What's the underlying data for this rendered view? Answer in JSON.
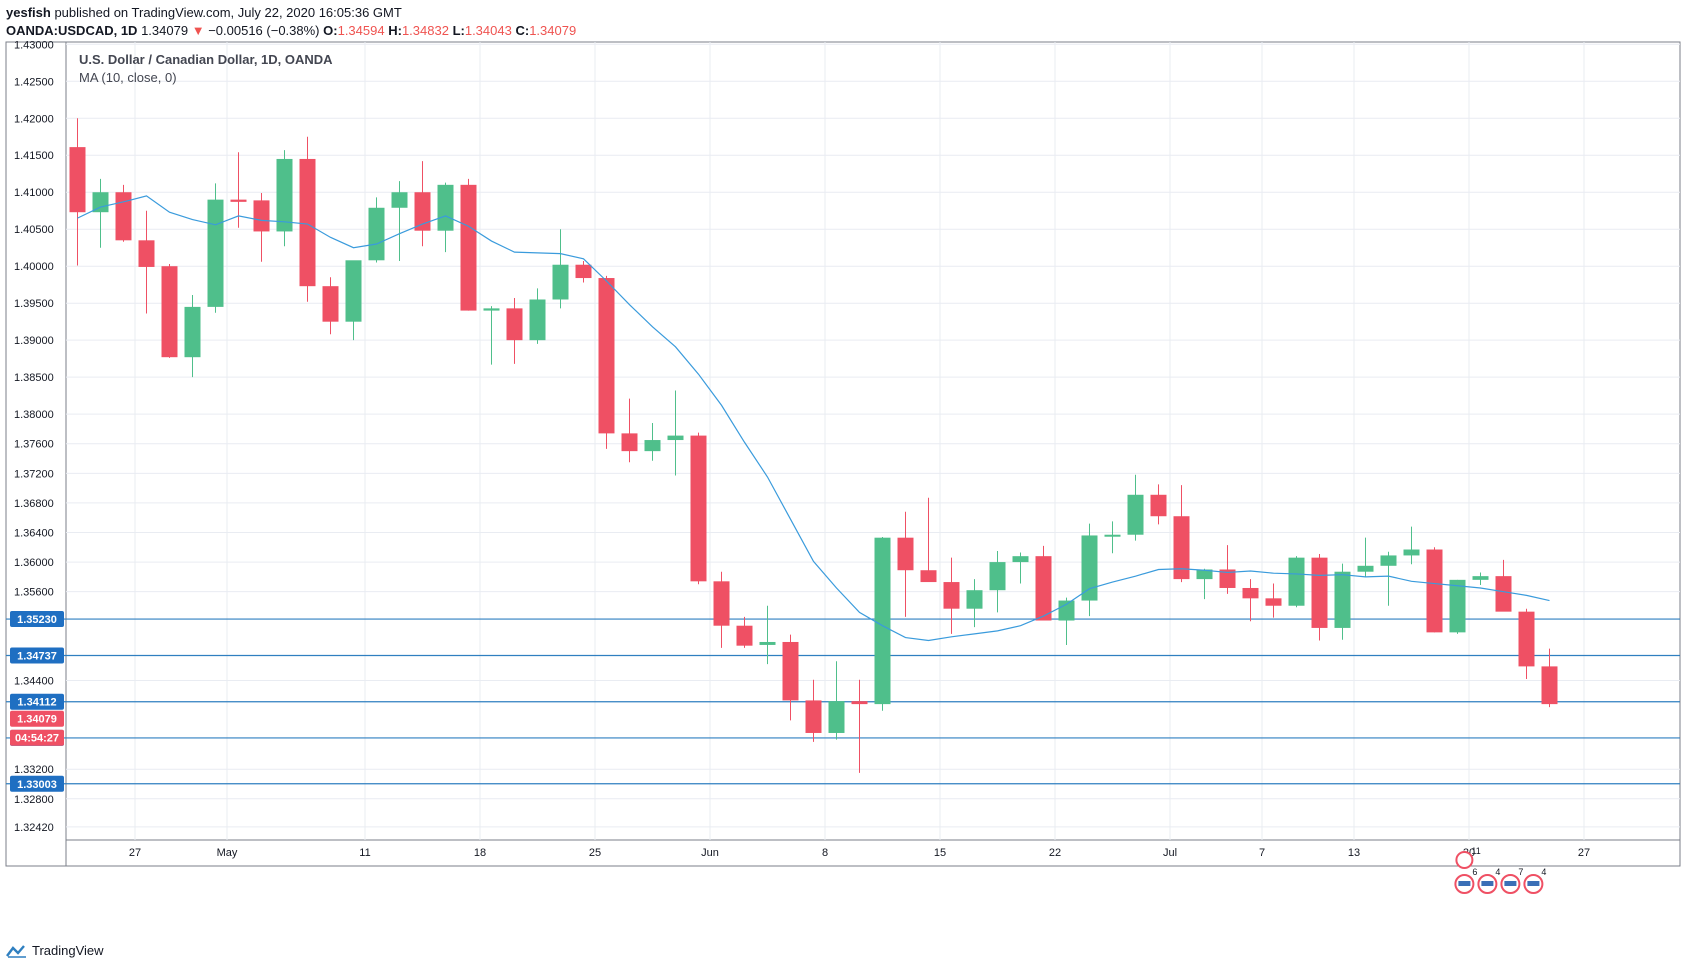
{
  "header": {
    "author": "yesfish",
    "published_text": "published on TradingView.com, July 22, 2020 16:05:36 GMT",
    "symbol": "OANDA:USDCAD, 1D",
    "last": "1.34079",
    "change_arrow": "▼",
    "change": "−0.00516 (−0.38%)",
    "o_label": "O:",
    "o_value": "1.34594",
    "h_label": "H:",
    "h_value": "1.34832",
    "l_label": "L:",
    "l_value": "1.34043",
    "c_label": "C:",
    "c_value": "1.34079"
  },
  "legend": {
    "title": "U.S. Dollar / Canadian Dollar, 1D, OANDA",
    "indicator": "MA (10, close, 0)"
  },
  "footer": {
    "brand": "TradingView"
  },
  "colors": {
    "up": "#4fbf8b",
    "down": "#ef5064",
    "ma": "#3a9bdc",
    "hline": "#2f7fc0",
    "grid": "#e9ecf2",
    "border": "#7b7f8a",
    "label_blue": "#1f6fc2",
    "label_red": "#ef5064"
  },
  "chart_data": {
    "type": "candlestick",
    "title": "U.S. Dollar / Canadian Dollar, 1D, OANDA",
    "ylim": [
      1.32243,
      1.43031
    ],
    "y_ticks": [
      {
        "v": 1.43,
        "t": "1.43000"
      },
      {
        "v": 1.425,
        "t": "1.42500"
      },
      {
        "v": 1.42,
        "t": "1.42000"
      },
      {
        "v": 1.415,
        "t": "1.41500"
      },
      {
        "v": 1.41,
        "t": "1.41000"
      },
      {
        "v": 1.405,
        "t": "1.40500"
      },
      {
        "v": 1.4,
        "t": "1.40000"
      },
      {
        "v": 1.395,
        "t": "1.39500"
      },
      {
        "v": 1.39,
        "t": "1.39000"
      },
      {
        "v": 1.385,
        "t": "1.38500"
      },
      {
        "v": 1.38,
        "t": "1.38000"
      },
      {
        "v": 1.376,
        "t": "1.37600"
      },
      {
        "v": 1.372,
        "t": "1.37200"
      },
      {
        "v": 1.368,
        "t": "1.36800"
      },
      {
        "v": 1.364,
        "t": "1.36400"
      },
      {
        "v": 1.36,
        "t": "1.36000"
      },
      {
        "v": 1.356,
        "t": "1.35600"
      },
      {
        "v": 1.344,
        "t": "1.34400"
      },
      {
        "v": 1.332,
        "t": "1.33200"
      },
      {
        "v": 1.328,
        "t": "1.32800"
      },
      {
        "v": 1.3242,
        "t": "1.32420"
      }
    ],
    "x_ticks": [
      {
        "i": 2.5,
        "t": "27"
      },
      {
        "i": 6.5,
        "t": "May"
      },
      {
        "i": 12.5,
        "t": "11"
      },
      {
        "i": 17.5,
        "t": "18"
      },
      {
        "i": 22.5,
        "t": "25"
      },
      {
        "i": 27.5,
        "t": "Jun"
      },
      {
        "i": 32.5,
        "t": "8"
      },
      {
        "i": 37.5,
        "t": "15"
      },
      {
        "i": 42.5,
        "t": "22"
      },
      {
        "i": 47.5,
        "t": "Jul"
      },
      {
        "i": 51.5,
        "t": "7"
      },
      {
        "i": 55.5,
        "t": "13"
      },
      {
        "i": 60.5,
        "t": "20"
      },
      {
        "i": 65.5,
        "t": "27"
      }
    ],
    "slots": 68,
    "candles": [
      {
        "o": 1.4161,
        "h": 1.42,
        "l": 1.4001,
        "c": 1.4073
      },
      {
        "o": 1.4073,
        "h": 1.4118,
        "l": 1.4025,
        "c": 1.41
      },
      {
        "o": 1.41,
        "h": 1.411,
        "l": 1.4033,
        "c": 1.4035
      },
      {
        "o": 1.4035,
        "h": 1.4075,
        "l": 1.3936,
        "c": 1.3999
      },
      {
        "o": 1.4,
        "h": 1.4003,
        "l": 1.3876,
        "c": 1.3877
      },
      {
        "o": 1.3877,
        "h": 1.3961,
        "l": 1.385,
        "c": 1.3945
      },
      {
        "o": 1.3945,
        "h": 1.4112,
        "l": 1.3937,
        "c": 1.409
      },
      {
        "o": 1.409,
        "h": 1.4154,
        "l": 1.4052,
        "c": 1.4087
      },
      {
        "o": 1.4089,
        "h": 1.4099,
        "l": 1.4006,
        "c": 1.4047
      },
      {
        "o": 1.4047,
        "h": 1.4157,
        "l": 1.4027,
        "c": 1.4145
      },
      {
        "o": 1.4145,
        "h": 1.4175,
        "l": 1.3952,
        "c": 1.3973
      },
      {
        "o": 1.3973,
        "h": 1.3985,
        "l": 1.3908,
        "c": 1.3925
      },
      {
        "o": 1.3925,
        "h": 1.4006,
        "l": 1.39,
        "c": 1.4008
      },
      {
        "o": 1.4008,
        "h": 1.4093,
        "l": 1.4005,
        "c": 1.4079
      },
      {
        "o": 1.4079,
        "h": 1.4115,
        "l": 1.4007,
        "c": 1.41
      },
      {
        "o": 1.41,
        "h": 1.4142,
        "l": 1.4027,
        "c": 1.4048
      },
      {
        "o": 1.4048,
        "h": 1.4113,
        "l": 1.4019,
        "c": 1.411
      },
      {
        "o": 1.411,
        "h": 1.4118,
        "l": 1.394,
        "c": 1.394
      },
      {
        "o": 1.394,
        "h": 1.3946,
        "l": 1.3867,
        "c": 1.3943
      },
      {
        "o": 1.3943,
        "h": 1.3957,
        "l": 1.3868,
        "c": 1.39
      },
      {
        "o": 1.39,
        "h": 1.397,
        "l": 1.3895,
        "c": 1.3955
      },
      {
        "o": 1.3955,
        "h": 1.405,
        "l": 1.3943,
        "c": 1.4002
      },
      {
        "o": 1.4002,
        "h": 1.4007,
        "l": 1.3978,
        "c": 1.3984
      },
      {
        "o": 1.3984,
        "h": 1.3987,
        "l": 1.3753,
        "c": 1.3774
      },
      {
        "o": 1.3774,
        "h": 1.3821,
        "l": 1.3735,
        "c": 1.375
      },
      {
        "o": 1.375,
        "h": 1.3788,
        "l": 1.3737,
        "c": 1.3765
      },
      {
        "o": 1.3765,
        "h": 1.3832,
        "l": 1.3717,
        "c": 1.3771
      },
      {
        "o": 1.3771,
        "h": 1.3775,
        "l": 1.357,
        "c": 1.3574
      },
      {
        "o": 1.3574,
        "h": 1.3587,
        "l": 1.3484,
        "c": 1.3514
      },
      {
        "o": 1.3514,
        "h": 1.3526,
        "l": 1.3484,
        "c": 1.3487
      },
      {
        "o": 1.3488,
        "h": 1.3541,
        "l": 1.3462,
        "c": 1.3492
      },
      {
        "o": 1.3492,
        "h": 1.3502,
        "l": 1.3386,
        "c": 1.3413
      },
      {
        "o": 1.3413,
        "h": 1.3441,
        "l": 1.3357,
        "c": 1.3369
      },
      {
        "o": 1.3369,
        "h": 1.3466,
        "l": 1.336,
        "c": 1.3412
      },
      {
        "o": 1.3412,
        "h": 1.3441,
        "l": 1.3315,
        "c": 1.3408
      },
      {
        "o": 1.3408,
        "h": 1.3634,
        "l": 1.3399,
        "c": 1.3633
      },
      {
        "o": 1.3633,
        "h": 1.3668,
        "l": 1.3526,
        "c": 1.3589
      },
      {
        "o": 1.3589,
        "h": 1.3687,
        "l": 1.3574,
        "c": 1.3573
      },
      {
        "o": 1.3573,
        "h": 1.3606,
        "l": 1.3503,
        "c": 1.3537
      },
      {
        "o": 1.3537,
        "h": 1.3577,
        "l": 1.3512,
        "c": 1.3562
      },
      {
        "o": 1.3562,
        "h": 1.3615,
        "l": 1.3532,
        "c": 1.36
      },
      {
        "o": 1.36,
        "h": 1.3613,
        "l": 1.3571,
        "c": 1.3608
      },
      {
        "o": 1.3608,
        "h": 1.3622,
        "l": 1.3521,
        "c": 1.3521
      },
      {
        "o": 1.3521,
        "h": 1.3552,
        "l": 1.3488,
        "c": 1.3548
      },
      {
        "o": 1.3548,
        "h": 1.3652,
        "l": 1.3527,
        "c": 1.3636
      },
      {
        "o": 1.3636,
        "h": 1.3655,
        "l": 1.3612,
        "c": 1.3637
      },
      {
        "o": 1.3637,
        "h": 1.3718,
        "l": 1.3629,
        "c": 1.3691
      },
      {
        "o": 1.3691,
        "h": 1.3705,
        "l": 1.3651,
        "c": 1.3662
      },
      {
        "o": 1.3662,
        "h": 1.3704,
        "l": 1.3573,
        "c": 1.3577
      },
      {
        "o": 1.3577,
        "h": 1.3591,
        "l": 1.355,
        "c": 1.359
      },
      {
        "o": 1.359,
        "h": 1.3623,
        "l": 1.3557,
        "c": 1.3565
      },
      {
        "o": 1.3565,
        "h": 1.3577,
        "l": 1.352,
        "c": 1.3551
      },
      {
        "o": 1.3551,
        "h": 1.3571,
        "l": 1.3525,
        "c": 1.3541
      },
      {
        "o": 1.3541,
        "h": 1.3608,
        "l": 1.3539,
        "c": 1.3606
      },
      {
        "o": 1.3606,
        "h": 1.3611,
        "l": 1.3494,
        "c": 1.3511
      },
      {
        "o": 1.3511,
        "h": 1.3598,
        "l": 1.3495,
        "c": 1.3587
      },
      {
        "o": 1.3587,
        "h": 1.3633,
        "l": 1.358,
        "c": 1.3595
      },
      {
        "o": 1.3595,
        "h": 1.3614,
        "l": 1.3541,
        "c": 1.3609
      },
      {
        "o": 1.3609,
        "h": 1.3648,
        "l": 1.3597,
        "c": 1.3617
      },
      {
        "o": 1.3617,
        "h": 1.362,
        "l": 1.3505,
        "c": 1.3505
      },
      {
        "o": 1.3505,
        "h": 1.3576,
        "l": 1.3503,
        "c": 1.3576
      },
      {
        "o": 1.3576,
        "h": 1.3586,
        "l": 1.3569,
        "c": 1.3581
      },
      {
        "o": 1.3581,
        "h": 1.3603,
        "l": 1.3534,
        "c": 1.3533
      },
      {
        "o": 1.3533,
        "h": 1.3537,
        "l": 1.3442,
        "c": 1.3459
      },
      {
        "o": 1.3459,
        "h": 1.3483,
        "l": 1.3404,
        "c": 1.3408
      }
    ],
    "ma": {
      "name": "MA (10, close, 0)",
      "start": 0,
      "values": [
        1.4065,
        1.408,
        1.4087,
        1.4095,
        1.4073,
        1.4063,
        1.4056,
        1.4068,
        1.4062,
        1.406,
        1.4057,
        1.4039,
        1.4025,
        1.403,
        1.4044,
        1.4057,
        1.4068,
        1.4054,
        1.4034,
        1.4019,
        1.4018,
        1.4017,
        1.401,
        1.398,
        1.3948,
        1.3918,
        1.3891,
        1.3854,
        1.3812,
        1.3762,
        1.3715,
        1.3658,
        1.3601,
        1.3565,
        1.3532,
        1.3514,
        1.3498,
        1.3494,
        1.3499,
        1.3503,
        1.3507,
        1.3514,
        1.3527,
        1.3543,
        1.3564,
        1.3573,
        1.3581,
        1.359,
        1.3591,
        1.3589,
        1.3586,
        1.3588,
        1.3585,
        1.3584,
        1.3582,
        1.3583,
        1.358,
        1.3581,
        1.3574,
        1.3571,
        1.3568,
        1.3565,
        1.356,
        1.3555,
        1.3548
      ]
    },
    "hlines": [
      {
        "v": 1.3523,
        "t": "1.35230"
      },
      {
        "v": 1.34737,
        "t": "1.34737"
      },
      {
        "v": 1.34112,
        "t": "1.34112"
      },
      {
        "v": 1.33623,
        "t": "1.33623"
      },
      {
        "v": 1.33003,
        "t": "1.33003"
      }
    ],
    "price_label": {
      "v": 1.34079,
      "t": "1.34079",
      "countdown": "04:54:27"
    },
    "event_badges": {
      "top": "11",
      "counts": [
        "6",
        "4",
        "7",
        "4"
      ]
    }
  }
}
